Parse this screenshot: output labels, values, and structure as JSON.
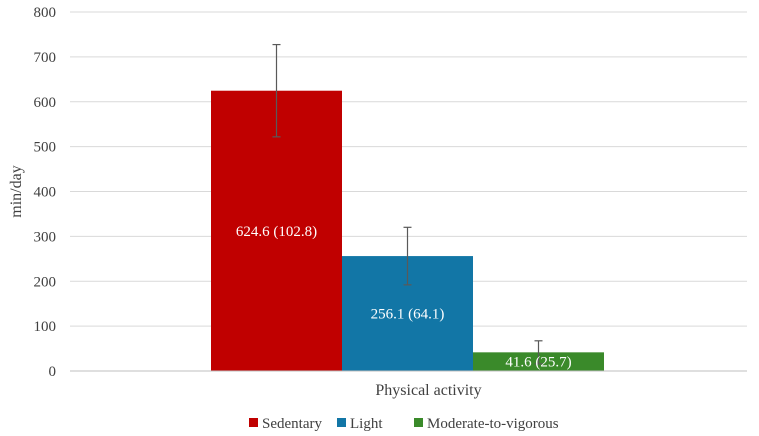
{
  "chart_data": {
    "type": "bar",
    "title": "",
    "xlabel": "Physical activity",
    "ylabel": "min/day",
    "ylim": [
      0,
      800
    ],
    "y_ticks": [
      0,
      100,
      200,
      300,
      400,
      500,
      600,
      700,
      800
    ],
    "grid": true,
    "legend_position": "bottom",
    "series": [
      {
        "name": "Sedentary",
        "value": 624.6,
        "error": 102.8,
        "label": "624.6 (102.8)",
        "color": "#C00000"
      },
      {
        "name": "Light",
        "value": 256.1,
        "error": 64.1,
        "label": "256.1 (64.1)",
        "color": "#1276A6"
      },
      {
        "name": "Moderate-to-vigorous",
        "value": 41.6,
        "error": 25.7,
        "label": "41.6 (25.7)",
        "color": "#3A8A2A"
      }
    ]
  }
}
